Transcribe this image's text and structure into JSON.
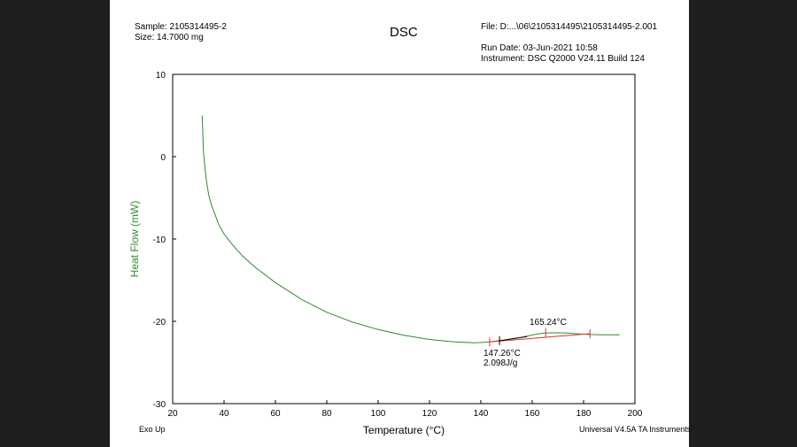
{
  "header": {
    "sample": "Sample: 2105314495-2",
    "size": "Size:  14.7000 mg",
    "file": "File: D:...\\06\\2105314495\\2105314495-2.001",
    "run_date": "Run Date: 03-Jun-2021 10:58",
    "instrument": "Instrument: DSC Q2000 V24.11 Build 124"
  },
  "footer": {
    "exo": "Exo Up",
    "software": "Universal V4.5A TA Instruments"
  },
  "colors": {
    "curve": "#2e8b2e",
    "baseline": "#e03030",
    "marker": "#000000",
    "axis_label": "#2e8b2e",
    "frame": "#000000"
  },
  "chart_data": {
    "type": "line",
    "title": "DSC",
    "xlabel": "Temperature (°C)",
    "ylabel": "Heat Flow (mW)",
    "xlim": [
      20,
      200
    ],
    "ylim": [
      -30,
      10
    ],
    "xticks": [
      20,
      40,
      60,
      80,
      100,
      120,
      140,
      160,
      180,
      200
    ],
    "yticks": [
      10,
      0,
      -10,
      -20,
      -30
    ],
    "series": [
      {
        "name": "Heat Flow",
        "x": [
          31.5,
          32,
          33,
          34,
          35,
          36,
          38,
          40,
          43,
          47,
          52,
          60,
          70,
          80,
          90,
          100,
          110,
          120,
          130,
          137,
          140,
          143,
          146,
          149,
          152,
          155,
          158,
          161,
          164,
          167,
          170,
          173,
          176,
          179,
          182,
          186,
          190,
          194
        ],
        "y": [
          5.0,
          0.5,
          -2.6,
          -4.6,
          -5.8,
          -6.6,
          -8.3,
          -9.4,
          -10.6,
          -12.0,
          -13.4,
          -15.3,
          -17.3,
          -18.9,
          -20.1,
          -21.0,
          -21.7,
          -22.2,
          -22.5,
          -22.6,
          -22.58,
          -22.5,
          -22.4,
          -22.3,
          -22.15,
          -22.0,
          -21.8,
          -21.6,
          -21.45,
          -21.4,
          -21.4,
          -21.42,
          -21.48,
          -21.55,
          -21.6,
          -21.62,
          -21.65,
          -21.65
        ]
      }
    ],
    "baseline": {
      "x": [
        143.4,
        182.5
      ],
      "y": [
        -22.5,
        -21.5
      ]
    },
    "markers": [
      {
        "x": 143.4,
        "y": -22.5,
        "color": "red"
      },
      {
        "x": 147.26,
        "y": -22.35,
        "color": "black"
      },
      {
        "x": 165.24,
        "y": -21.35,
        "color": "red"
      },
      {
        "x": 182.5,
        "y": -21.5,
        "color": "red"
      }
    ],
    "annotations": [
      {
        "id": "peak",
        "text": "165.24°C"
      },
      {
        "id": "onset",
        "text": "147.26°C"
      },
      {
        "id": "enthalpy",
        "text": "2.098J/g"
      }
    ]
  }
}
